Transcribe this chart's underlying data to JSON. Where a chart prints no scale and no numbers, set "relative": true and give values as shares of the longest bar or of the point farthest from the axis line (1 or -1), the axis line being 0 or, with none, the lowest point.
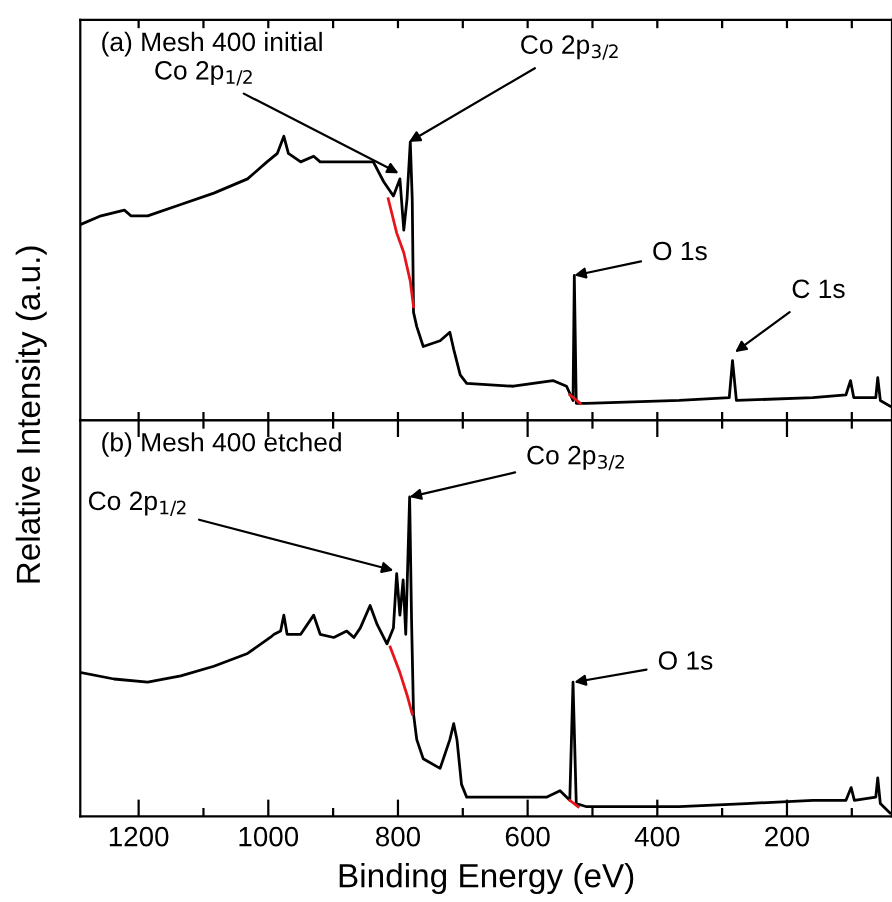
{
  "chart_data": [
    {
      "type": "line",
      "title": "(a) Mesh 400 initial",
      "ylabel": "Relative Intensity (a.u.)",
      "relative": true,
      "tick_labels": false,
      "marker": "none",
      "line_style": "solid",
      "xlim": [
        1290,
        38
      ],
      "xticks": [
        {
          "value": 1200,
          "label": null
        },
        {
          "value": 1100,
          "label": null
        },
        {
          "value": 1000,
          "label": null
        },
        {
          "value": 900,
          "label": null
        },
        {
          "value": 800,
          "label": null
        },
        {
          "value": 700,
          "label": null
        },
        {
          "value": 600,
          "label": null
        },
        {
          "value": 500,
          "label": null
        },
        {
          "value": 400,
          "label": null
        },
        {
          "value": 300,
          "label": null
        },
        {
          "value": 200,
          "label": null
        },
        {
          "value": 100,
          "label": null
        }
      ],
      "series": [
        {
          "color": "#000000",
          "x": [
            1289,
            1258,
            1222,
            1212,
            1186,
            1135,
            1084,
            1032,
            1002,
            986,
            976,
            969,
            950,
            930,
            920,
            879,
            838,
            822,
            807,
            797,
            791,
            786,
            781,
            778,
            776,
            771,
            761,
            735,
            720,
            714,
            704,
            694,
            622,
            561,
            540,
            530,
            528,
            525,
            509,
            366,
            289,
            284,
            278,
            160,
            109,
            102,
            97,
            63,
            60,
            56,
            41
          ],
          "values": [
            0.69,
            0.72,
            0.74,
            0.72,
            0.72,
            0.76,
            0.8,
            0.85,
            0.91,
            0.94,
            1.0,
            0.94,
            0.91,
            0.93,
            0.91,
            0.91,
            0.91,
            0.84,
            0.79,
            0.85,
            0.67,
            0.78,
            0.98,
            0.78,
            0.38,
            0.33,
            0.26,
            0.28,
            0.31,
            0.25,
            0.16,
            0.13,
            0.12,
            0.14,
            0.12,
            0.07,
            0.51,
            0.06,
            0.06,
            0.07,
            0.08,
            0.21,
            0.07,
            0.08,
            0.09,
            0.14,
            0.08,
            0.08,
            0.15,
            0.07,
            0.05
          ]
        },
        {
          "color": "#e8141b",
          "x": [
            815,
            802,
            791,
            781,
            776
          ],
          "values": [
            0.78,
            0.66,
            0.59,
            0.49,
            0.4
          ]
        },
        {
          "color": "#e8141b",
          "x": [
            535,
            519
          ],
          "values": [
            0.09,
            0.06
          ]
        }
      ],
      "annotations": [
        {
          "text": "Co 2p$_{1/2}$",
          "x": 799,
          "y": 0.87
        },
        {
          "text": "Co 2p$_{3/2}$",
          "x": 783,
          "y": 0.98
        },
        {
          "text": "O 1s",
          "x": 528,
          "y": 0.51
        },
        {
          "text": "C 1s",
          "x": 280,
          "y": 0.24
        }
      ]
    },
    {
      "type": "line",
      "title": "(b) Mesh 400 etched",
      "xlabel": "Binding Energy (eV)",
      "relative": true,
      "tick_labels": "x",
      "marker": "none",
      "line_style": "solid",
      "xlim": [
        1290,
        38
      ],
      "xticks": [
        1200,
        {
          "value": 1100,
          "label": null
        },
        1000,
        {
          "value": 900,
          "label": null
        },
        800,
        {
          "value": 700,
          "label": null
        },
        600,
        {
          "value": 500,
          "label": null
        },
        400,
        {
          "value": 300,
          "label": null
        },
        200,
        {
          "value": 100,
          "label": null
        }
      ],
      "series": [
        {
          "color": "#000000",
          "x": [
            1289,
            1238,
            1186,
            1135,
            1084,
            1032,
            997,
            991,
            981,
            976,
            971,
            950,
            930,
            920,
            899,
            879,
            868,
            858,
            843,
            832,
            817,
            807,
            802,
            797,
            792,
            788,
            782,
            779,
            776,
            771,
            761,
            735,
            720,
            714,
            709,
            702,
            694,
            622,
            571,
            550,
            535,
            530,
            525,
            509,
            366,
            263,
            160,
            109,
            101,
            96,
            63,
            60,
            56,
            41
          ],
          "values": [
            0.45,
            0.43,
            0.42,
            0.44,
            0.47,
            0.51,
            0.56,
            0.57,
            0.58,
            0.63,
            0.57,
            0.57,
            0.63,
            0.57,
            0.56,
            0.58,
            0.56,
            0.59,
            0.66,
            0.6,
            0.54,
            0.59,
            0.76,
            0.63,
            0.74,
            0.57,
            1.0,
            0.61,
            0.32,
            0.24,
            0.18,
            0.15,
            0.24,
            0.29,
            0.24,
            0.1,
            0.06,
            0.06,
            0.06,
            0.08,
            0.05,
            0.42,
            0.04,
            0.03,
            0.03,
            0.04,
            0.05,
            0.05,
            0.09,
            0.05,
            0.06,
            0.12,
            0.04,
            0.01
          ]
        },
        {
          "color": "#e8141b",
          "x": [
            812,
            797,
            786,
            778
          ],
          "values": [
            0.53,
            0.45,
            0.38,
            0.32
          ]
        },
        {
          "color": "#e8141b",
          "x": [
            535,
            522
          ],
          "values": [
            0.05,
            0.03
          ]
        }
      ],
      "annotations": [
        {
          "text": "Co 2p$_{1/2}$",
          "x": 807,
          "y": 0.77
        },
        {
          "text": "Co 2p$_{3/2}$",
          "x": 782,
          "y": 1.0
        },
        {
          "text": "O 1s",
          "x": 528,
          "y": 0.42
        }
      ]
    }
  ]
}
